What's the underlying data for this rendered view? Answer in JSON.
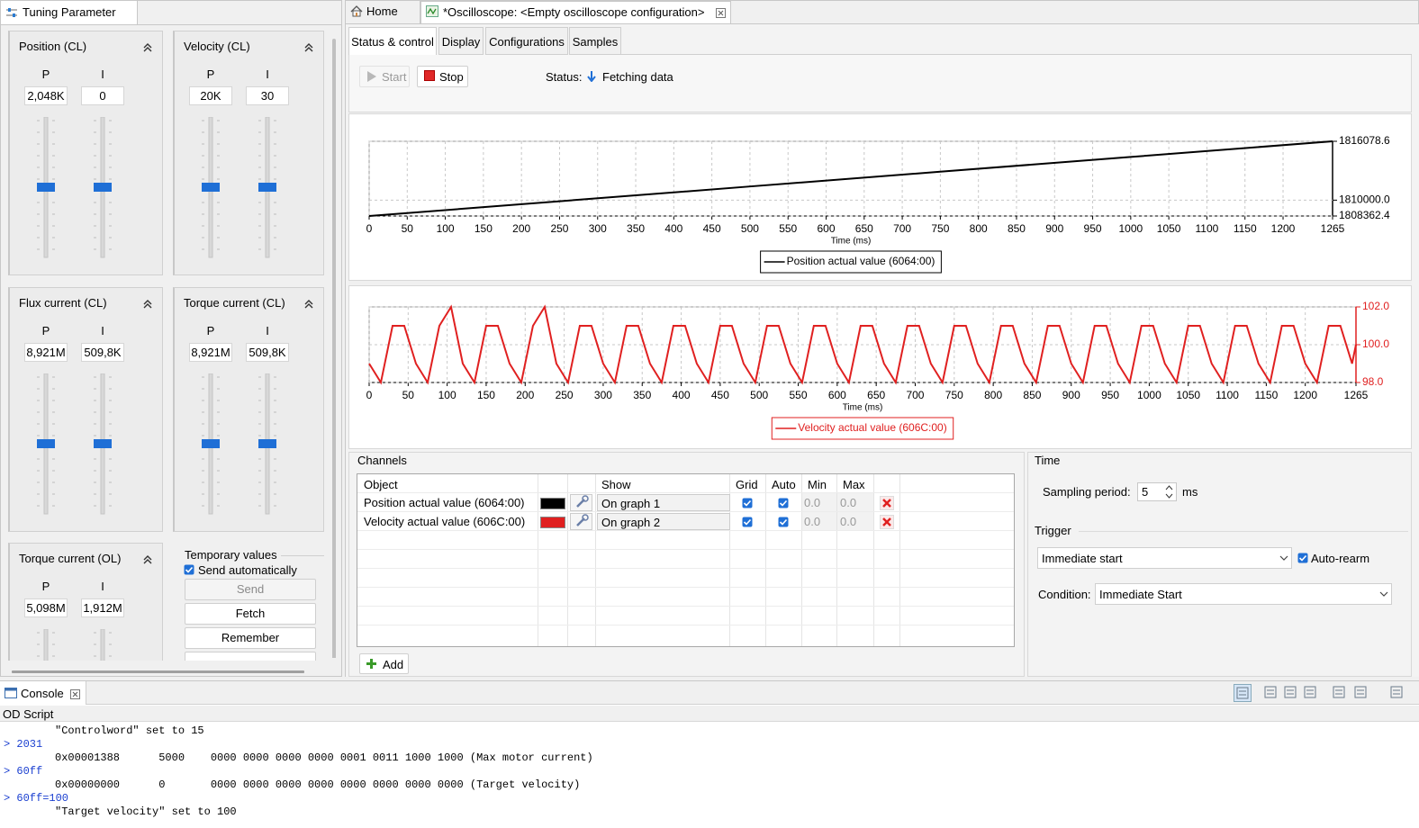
{
  "left_panel": {
    "tab": "Tuning Parameter",
    "groups": [
      {
        "title": "Position (CL)",
        "labels": [
          "P",
          "I"
        ],
        "values": [
          "2,048K",
          "0"
        ]
      },
      {
        "title": "Velocity (CL)",
        "labels": [
          "P",
          "I"
        ],
        "values": [
          "20K",
          "30"
        ]
      },
      {
        "title": "Flux current (CL)",
        "labels": [
          "P",
          "I"
        ],
        "values": [
          "8,921M",
          "509,8K"
        ]
      },
      {
        "title": "Torque current (CL)",
        "labels": [
          "P",
          "I"
        ],
        "values": [
          "8,921M",
          "509,8K"
        ]
      },
      {
        "title": "Torque current (OL)",
        "labels": [
          "P",
          "I"
        ],
        "values": [
          "5,098M",
          "1,912M"
        ]
      }
    ],
    "temporary": {
      "title": "Temporary values",
      "send_automatically": "Send automatically",
      "buttons": [
        "Send",
        "Fetch",
        "Remember"
      ]
    }
  },
  "tabs": [
    "Home",
    "*Oscilloscope: <Empty oscilloscope configuration>"
  ],
  "subtabs": [
    "Status & control",
    "Display",
    "Configurations",
    "Samples"
  ],
  "controls": {
    "start": "Start",
    "stop": "Stop",
    "status_label": "Status:",
    "status": "Fetching data"
  },
  "chart_data": [
    {
      "type": "line",
      "xlabel": "Time (ms)",
      "x": [
        0,
        250,
        500,
        750,
        1000,
        1265
      ],
      "xlim": [
        0,
        1265
      ],
      "xticks": [
        0,
        50,
        100,
        150,
        200,
        250,
        300,
        350,
        400,
        450,
        500,
        550,
        600,
        650,
        700,
        750,
        800,
        850,
        900,
        950,
        1000,
        1050,
        1100,
        1150,
        1200,
        1265
      ],
      "ylim": [
        1808362.4,
        1816078.6
      ],
      "yticks": [
        1808362.4,
        {
          "value": 1810000,
          "label": "1810000.0"
        },
        1816078.6
      ],
      "axis_color": "#000000",
      "grid": true,
      "legend": "bottom",
      "series": [
        {
          "name": "Position actual value (6064:00)",
          "color": "#000000",
          "values": [
            1808362.4,
            1809887.3,
            1811412.3,
            1812937.2,
            1814462.2,
            1816078.6
          ]
        }
      ]
    },
    {
      "type": "line",
      "xlabel": "Time (ms)",
      "x": [
        0,
        15,
        30,
        45,
        60,
        75,
        90,
        105,
        120,
        135,
        150,
        165,
        180,
        195,
        210,
        225,
        240,
        255,
        270,
        285,
        300,
        315,
        330,
        345,
        360,
        375,
        390,
        405,
        420,
        435,
        450,
        465,
        480,
        495,
        510,
        525,
        540,
        555,
        570,
        585,
        600,
        615,
        630,
        645,
        660,
        675,
        690,
        705,
        720,
        735,
        750,
        765,
        780,
        795,
        810,
        825,
        840,
        855,
        870,
        885,
        900,
        915,
        930,
        945,
        960,
        975,
        990,
        1005,
        1020,
        1035,
        1050,
        1065,
        1080,
        1095,
        1110,
        1125,
        1140,
        1155,
        1170,
        1185,
        1200,
        1215,
        1230,
        1245,
        1260,
        1265
      ],
      "xlim": [
        0,
        1265
      ],
      "xticks": [
        0,
        50,
        100,
        150,
        200,
        250,
        300,
        350,
        400,
        450,
        500,
        550,
        600,
        650,
        700,
        750,
        800,
        850,
        900,
        950,
        1000,
        1050,
        1100,
        1150,
        1200,
        1265
      ],
      "ylim": [
        98,
        102
      ],
      "yticks": [
        {
          "value": 98,
          "label": "98.0"
        },
        {
          "value": 100,
          "label": "100.0"
        },
        {
          "value": 102,
          "label": "102.0"
        }
      ],
      "axis_color": "#e02020",
      "grid": true,
      "legend": "bottom",
      "series": [
        {
          "name": "Velocity actual value (606C:00)",
          "color": "#e02020",
          "values": [
            99,
            98,
            101,
            101,
            99,
            98,
            101,
            102,
            99,
            98,
            101,
            101,
            99,
            98,
            101,
            102,
            99,
            98,
            101,
            101,
            99,
            98,
            101,
            101,
            99,
            98,
            101,
            101,
            99,
            98,
            101,
            101,
            99,
            98,
            101,
            101,
            99,
            98,
            101,
            101,
            99,
            98,
            101,
            101,
            99,
            98,
            101,
            101,
            99,
            98,
            101,
            101,
            99,
            98,
            101,
            101,
            99,
            98,
            101,
            101,
            99,
            98,
            101,
            101,
            99,
            98,
            101,
            101,
            99,
            98,
            101,
            101,
            99,
            98,
            101,
            101,
            99,
            98,
            101,
            101,
            99,
            98,
            101,
            101,
            99,
            100
          ]
        }
      ]
    }
  ],
  "channels": {
    "title": "Channels",
    "columns": [
      "Object",
      "Show",
      "Grid",
      "Auto",
      "Min",
      "Max"
    ],
    "rows": [
      {
        "object": "Position actual value (6064:00)",
        "show": "On graph 1",
        "min": "0.0",
        "max": "0.0"
      },
      {
        "object": "Velocity actual value (606C:00)",
        "show": "On graph 2",
        "min": "0.0",
        "max": "0.0"
      }
    ],
    "add": "Add"
  },
  "time": {
    "title": "Time",
    "sampling_label": "Sampling period:",
    "sampling": 5,
    "unit": "ms"
  },
  "trigger": {
    "title": "Trigger",
    "mode": "Immediate start",
    "auto_rearm": "Auto-rearm",
    "condition_label": "Condition:",
    "condition": "Immediate Start"
  },
  "console": {
    "tab": "Console",
    "title": "OD Script",
    "lines": [
      "\"Controlword\" set to 15",
      "> 2031",
      "0x00001388      5000    0000 0000 0000 0000 0001 0011 1000 1000 (Max motor current)",
      "> 60ff",
      "0x00000000      0       0000 0000 0000 0000 0000 0000 0000 0000 (Target velocity)",
      "> 60ff=100",
      "\"Target velocity\" set to 100"
    ]
  }
}
